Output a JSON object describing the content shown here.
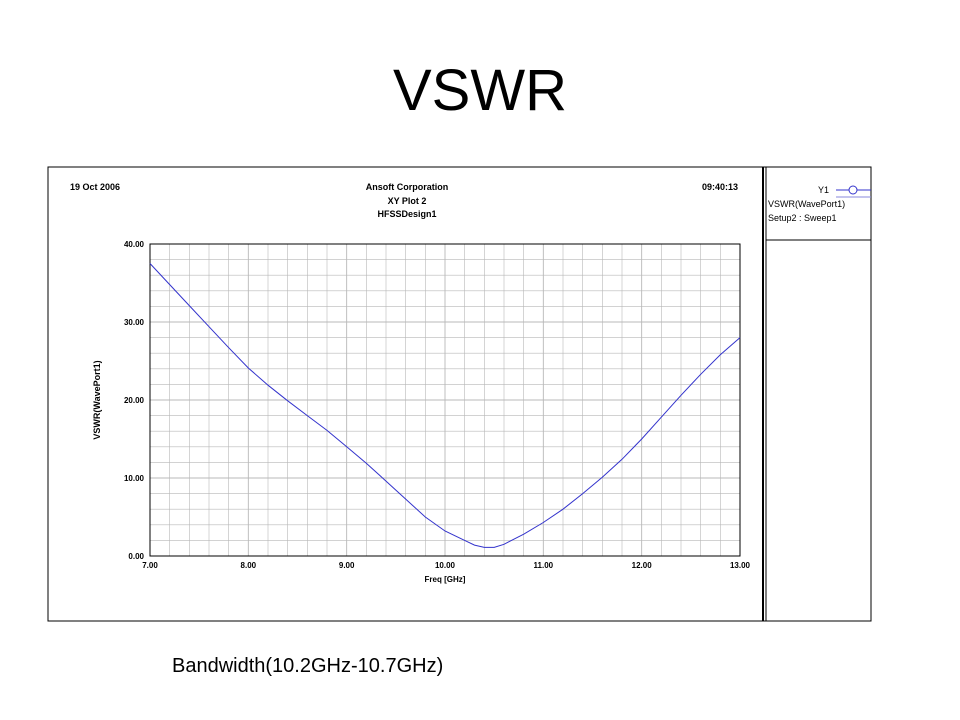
{
  "slide": {
    "title": "VSWR",
    "caption": "Bandwidth(10.2GHz-10.7GHz)"
  },
  "plot_header": {
    "date": "19 Oct 2006",
    "company": "Ansoft Corporation",
    "plot_name": "XY Plot 2",
    "design": "HFSSDesign1",
    "time": "09:40:13"
  },
  "legend": {
    "trace_id": "Y1",
    "trace_name": "VSWR(WavePort1)",
    "setup": "Setup2 : Sweep1"
  },
  "colors": {
    "trace": "#3333cc",
    "grid": "#b8b8b8",
    "frame": "#000000"
  },
  "chart_data": {
    "type": "line",
    "title": "",
    "xlabel": "Freq [GHz]",
    "ylabel": "VSWR(WavePort1)",
    "xlim": [
      7.0,
      13.0
    ],
    "ylim": [
      0.0,
      40.0
    ],
    "x_ticks": [
      "7.00",
      "8.00",
      "9.00",
      "10.00",
      "11.00",
      "12.00",
      "13.00"
    ],
    "y_ticks": [
      "0.00",
      "10.00",
      "20.00",
      "30.00",
      "40.00"
    ],
    "grid": true,
    "legend_position": "right",
    "series": [
      {
        "name": "VSWR(WavePort1)",
        "x": [
          7.0,
          7.2,
          7.4,
          7.6,
          7.8,
          8.0,
          8.2,
          8.4,
          8.6,
          8.8,
          9.0,
          9.2,
          9.4,
          9.6,
          9.8,
          10.0,
          10.2,
          10.3,
          10.4,
          10.5,
          10.6,
          10.8,
          11.0,
          11.2,
          11.4,
          11.6,
          11.8,
          12.0,
          12.2,
          12.4,
          12.6,
          12.8,
          13.0
        ],
        "y": [
          37.5,
          34.8,
          32.1,
          29.4,
          26.7,
          24.1,
          21.9,
          19.9,
          18.0,
          16.1,
          14.0,
          11.9,
          9.6,
          7.3,
          5.0,
          3.2,
          2.0,
          1.4,
          1.1,
          1.1,
          1.5,
          2.8,
          4.3,
          6.0,
          8.0,
          10.1,
          12.4,
          15.0,
          17.8,
          20.6,
          23.3,
          25.8,
          28.0
        ]
      }
    ]
  }
}
